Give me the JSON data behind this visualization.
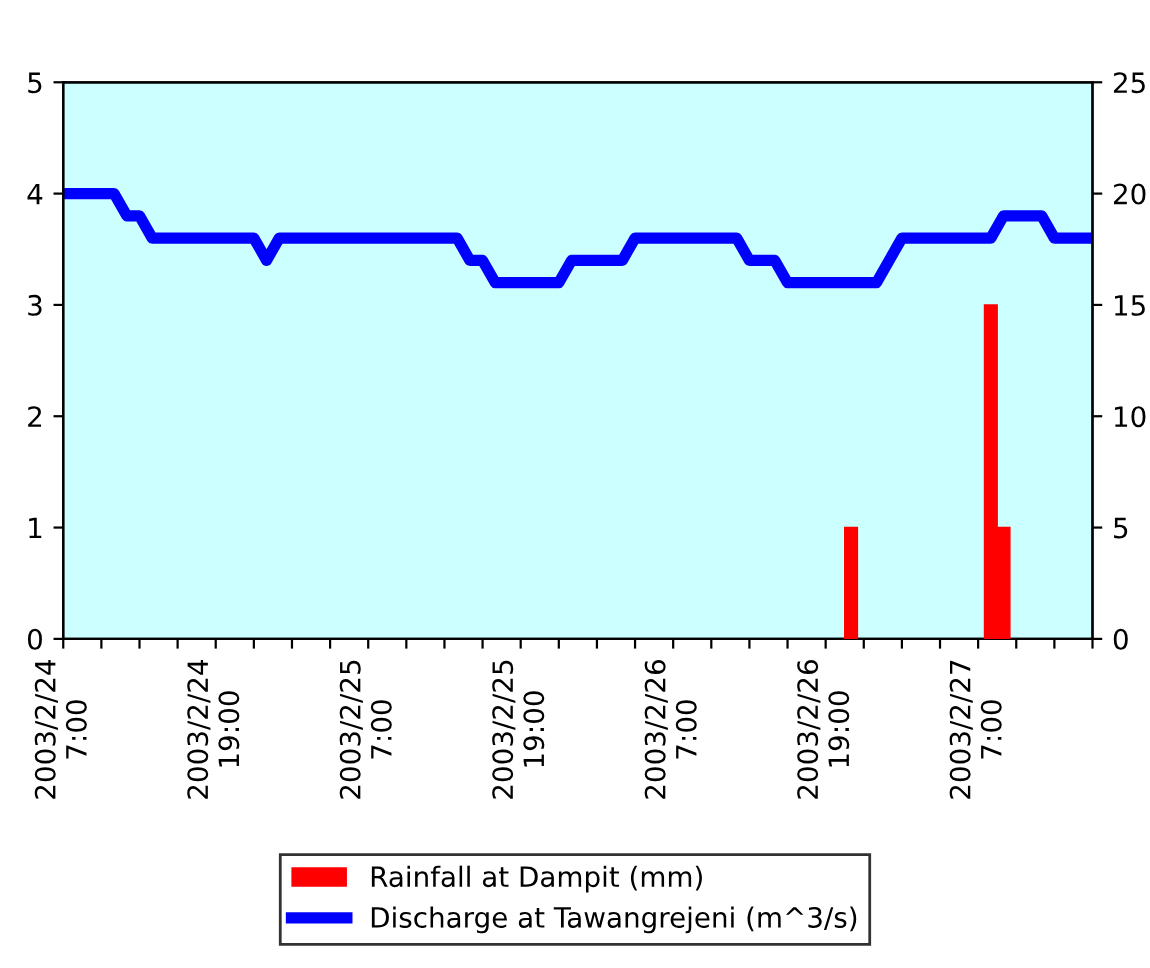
{
  "chart_data": {
    "type": "bar",
    "series": [
      {
        "name": "Rainfall at Dampit (mm)",
        "color": "#ff0000",
        "x": [
          "2003-02-26T21:00",
          "2003-02-27T08:00",
          "2003-02-27T09:00"
        ],
        "values": [
          1,
          3,
          1
        ]
      },
      {
        "name": "Discharge at Tawangrejeni (m^3/s)",
        "type": "line",
        "axis": "y2",
        "color": "#0000ff",
        "x": [
          "2003-02-24T07:00",
          "2003-02-24T11:00",
          "2003-02-24T12:00",
          "2003-02-24T13:00",
          "2003-02-24T14:00",
          "2003-02-24T22:00",
          "2003-02-24T23:00",
          "2003-02-25T00:00",
          "2003-02-25T14:00",
          "2003-02-25T15:00",
          "2003-02-25T16:00",
          "2003-02-25T17:00",
          "2003-02-25T22:00",
          "2003-02-25T23:00",
          "2003-02-26T03:00",
          "2003-02-26T04:00",
          "2003-02-26T12:00",
          "2003-02-26T13:00",
          "2003-02-26T15:00",
          "2003-02-26T16:00",
          "2003-02-26T23:00",
          "2003-02-27T01:00",
          "2003-02-27T08:00",
          "2003-02-27T09:00",
          "2003-02-27T12:00",
          "2003-02-27T13:00",
          "2003-02-27T16:00"
        ],
        "values": [
          20,
          20,
          19,
          19,
          18,
          18,
          17,
          18,
          18,
          17,
          17,
          16,
          16,
          17,
          17,
          18,
          18,
          17,
          17,
          16,
          16,
          18,
          18,
          19,
          19,
          18,
          18
        ]
      }
    ],
    "xlim": [
      "2003-02-24T07:00",
      "2003-02-27T16:00"
    ],
    "xticks": [
      {
        "value": "2003-02-24T07:00",
        "label": "2003/2/24\n7:00"
      },
      {
        "value": "2003-02-24T10:00",
        "label": null
      },
      {
        "value": "2003-02-24T13:00",
        "label": null
      },
      {
        "value": "2003-02-24T16:00",
        "label": null
      },
      {
        "value": "2003-02-24T19:00",
        "label": "2003/2/24\n19:00"
      },
      {
        "value": "2003-02-24T22:00",
        "label": null
      },
      {
        "value": "2003-02-25T01:00",
        "label": null
      },
      {
        "value": "2003-02-25T04:00",
        "label": null
      },
      {
        "value": "2003-02-25T07:00",
        "label": "2003/2/25\n7:00"
      },
      {
        "value": "2003-02-25T10:00",
        "label": null
      },
      {
        "value": "2003-02-25T13:00",
        "label": null
      },
      {
        "value": "2003-02-25T16:00",
        "label": null
      },
      {
        "value": "2003-02-25T19:00",
        "label": "2003/2/25\n19:00"
      },
      {
        "value": "2003-02-25T22:00",
        "label": null
      },
      {
        "value": "2003-02-26T01:00",
        "label": null
      },
      {
        "value": "2003-02-26T04:00",
        "label": null
      },
      {
        "value": "2003-02-26T07:00",
        "label": "2003/2/26\n7:00"
      },
      {
        "value": "2003-02-26T10:00",
        "label": null
      },
      {
        "value": "2003-02-26T13:00",
        "label": null
      },
      {
        "value": "2003-02-26T16:00",
        "label": null
      },
      {
        "value": "2003-02-26T19:00",
        "label": "2003/2/26\n19:00"
      },
      {
        "value": "2003-02-26T22:00",
        "label": null
      },
      {
        "value": "2003-02-27T01:00",
        "label": null
      },
      {
        "value": "2003-02-27T04:00",
        "label": null
      },
      {
        "value": "2003-02-27T07:00",
        "label": "2003/2/27\n7:00"
      },
      {
        "value": "2003-02-27T10:00",
        "label": null
      },
      {
        "value": "2003-02-27T13:00",
        "label": null
      },
      {
        "value": "2003-02-27T16:00",
        "label": null
      }
    ],
    "ylim": [
      0,
      5
    ],
    "yticks": [
      0,
      1,
      2,
      3,
      4,
      5
    ],
    "y2lim": [
      0,
      25
    ],
    "y2ticks": [
      0,
      5,
      10,
      15,
      20,
      25
    ],
    "grid": false,
    "legend": "bottom"
  }
}
